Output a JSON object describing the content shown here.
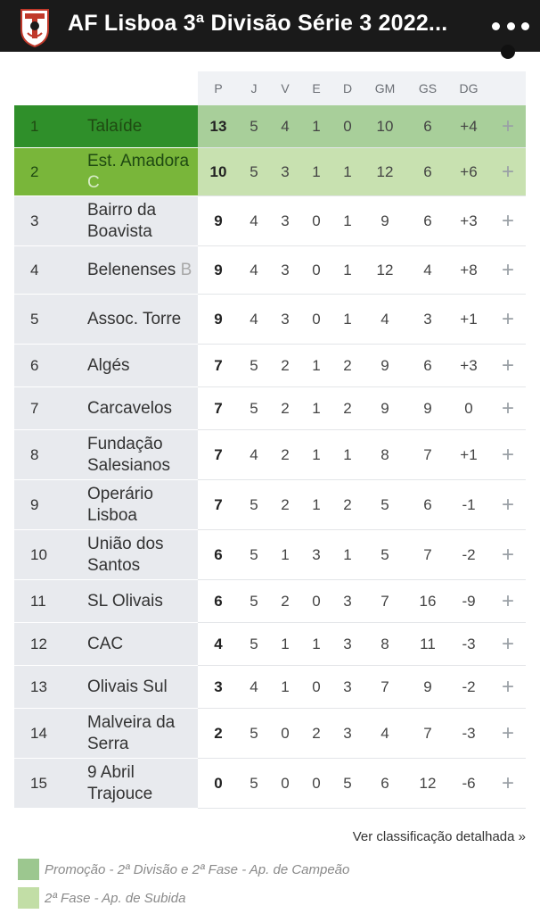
{
  "header": {
    "title": "AF Lisboa 3ª Divisão Série 3 2022...",
    "logo_icon": "af-lisboa-crest-icon",
    "menu_icon": "more-dots-icon"
  },
  "table": {
    "columns": [
      "P",
      "J",
      "V",
      "E",
      "D",
      "GM",
      "GS",
      "DG"
    ],
    "rows": [
      {
        "pos": "1",
        "team": "Talaíde",
        "suffix": "",
        "zone": "promo",
        "P": "13",
        "J": "5",
        "V": "4",
        "E": "1",
        "D": "0",
        "GM": "10",
        "GS": "6",
        "DG": "+4"
      },
      {
        "pos": "2",
        "team": "Est. Amadora",
        "suffix": "C",
        "zone": "sub",
        "P": "10",
        "J": "5",
        "V": "3",
        "E": "1",
        "D": "1",
        "GM": "12",
        "GS": "6",
        "DG": "+6"
      },
      {
        "pos": "3",
        "team": "Bairro da Boavista",
        "suffix": "",
        "zone": "",
        "P": "9",
        "J": "4",
        "V": "3",
        "E": "0",
        "D": "1",
        "GM": "9",
        "GS": "6",
        "DG": "+3"
      },
      {
        "pos": "4",
        "team": "Belenenses",
        "suffix": "B",
        "zone": "",
        "P": "9",
        "J": "4",
        "V": "3",
        "E": "0",
        "D": "1",
        "GM": "12",
        "GS": "4",
        "DG": "+8"
      },
      {
        "pos": "5",
        "team": "Assoc. Torre",
        "suffix": "",
        "zone": "",
        "P": "9",
        "J": "4",
        "V": "3",
        "E": "0",
        "D": "1",
        "GM": "4",
        "GS": "3",
        "DG": "+1"
      },
      {
        "pos": "6",
        "team": "Algés",
        "suffix": "",
        "zone": "",
        "P": "7",
        "J": "5",
        "V": "2",
        "E": "1",
        "D": "2",
        "GM": "9",
        "GS": "6",
        "DG": "+3"
      },
      {
        "pos": "7",
        "team": "Carcavelos",
        "suffix": "",
        "zone": "",
        "P": "7",
        "J": "5",
        "V": "2",
        "E": "1",
        "D": "2",
        "GM": "9",
        "GS": "9",
        "DG": "0"
      },
      {
        "pos": "8",
        "team": "Fundação Salesianos",
        "suffix": "",
        "zone": "",
        "P": "7",
        "J": "4",
        "V": "2",
        "E": "1",
        "D": "1",
        "GM": "8",
        "GS": "7",
        "DG": "+1"
      },
      {
        "pos": "9",
        "team": "Operário Lisboa",
        "suffix": "",
        "zone": "",
        "P": "7",
        "J": "5",
        "V": "2",
        "E": "1",
        "D": "2",
        "GM": "5",
        "GS": "6",
        "DG": "-1"
      },
      {
        "pos": "10",
        "team": "União dos Santos",
        "suffix": "",
        "zone": "",
        "P": "6",
        "J": "5",
        "V": "1",
        "E": "3",
        "D": "1",
        "GM": "5",
        "GS": "7",
        "DG": "-2"
      },
      {
        "pos": "11",
        "team": "SL Olivais",
        "suffix": "",
        "zone": "",
        "P": "6",
        "J": "5",
        "V": "2",
        "E": "0",
        "D": "3",
        "GM": "7",
        "GS": "16",
        "DG": "-9"
      },
      {
        "pos": "12",
        "team": "CAC",
        "suffix": "",
        "zone": "",
        "P": "4",
        "J": "5",
        "V": "1",
        "E": "1",
        "D": "3",
        "GM": "8",
        "GS": "11",
        "DG": "-3"
      },
      {
        "pos": "13",
        "team": "Olivais Sul",
        "suffix": "",
        "zone": "",
        "P": "3",
        "J": "4",
        "V": "1",
        "E": "0",
        "D": "3",
        "GM": "7",
        "GS": "9",
        "DG": "-2"
      },
      {
        "pos": "14",
        "team": "Malveira da Serra",
        "suffix": "",
        "zone": "",
        "P": "2",
        "J": "5",
        "V": "0",
        "E": "2",
        "D": "3",
        "GM": "4",
        "GS": "7",
        "DG": "-3"
      },
      {
        "pos": "15",
        "team": "9 Abril Trajouce",
        "suffix": "",
        "zone": "",
        "P": "0",
        "J": "5",
        "V": "0",
        "E": "0",
        "D": "5",
        "GM": "6",
        "GS": "12",
        "DG": "-6"
      }
    ]
  },
  "footer": {
    "detail_link": "Ver classificação detalhada »",
    "legend": [
      {
        "text": "Promoção - 2ª Divisão e 2ª Fase - Ap. de Campeão",
        "color": "#9cc78f"
      },
      {
        "text": "2ª Fase - Ap. de Subida",
        "color": "#c2dea6"
      }
    ]
  },
  "colors": {
    "promo_rank": "#2f8f2a",
    "promo_stats": "#a8cf9a",
    "sub_rank": "#79b63a",
    "sub_stats": "#c8e1b0"
  }
}
